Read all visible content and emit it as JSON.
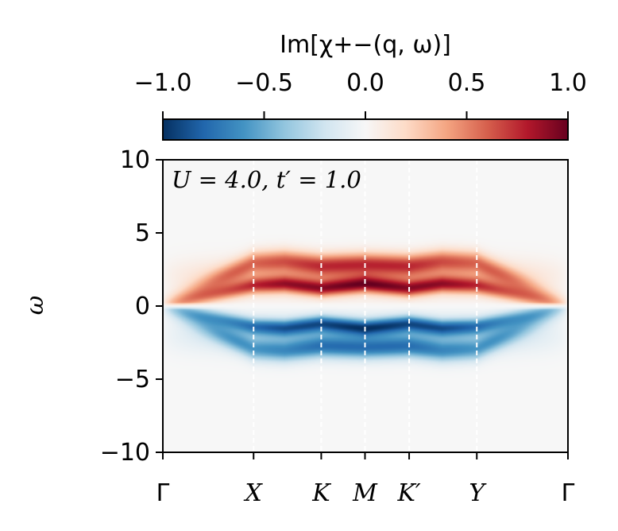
{
  "chart_data": {
    "type": "heatmap",
    "title": "",
    "annotation": "U = 4.0, t′ = 1.0",
    "ylabel": "ω",
    "xlabel": "",
    "ylim": [
      -10,
      10
    ],
    "yticks": [
      10,
      5,
      0,
      -5,
      -10
    ],
    "ytick_labels": [
      "10",
      "5",
      "0",
      "−5",
      "−10"
    ],
    "x_path": [
      {
        "label": "Γ",
        "pos": 0.0
      },
      {
        "label": "X",
        "pos": 0.224
      },
      {
        "label": "K",
        "pos": 0.391
      },
      {
        "label": "M",
        "pos": 0.499
      },
      {
        "label": "K′",
        "pos": 0.608
      },
      {
        "label": "Y",
        "pos": 0.775
      },
      {
        "label": "Γ",
        "pos": 1.0
      }
    ],
    "dashed_lines_at": [
      "X",
      "K",
      "M",
      "K′",
      "Y"
    ],
    "colorbar": {
      "label": "Im[χ+−(q, ω)]",
      "range": [
        -1.0,
        1.0
      ],
      "ticks": [
        -1.0,
        -0.5,
        0.0,
        0.5,
        1.0
      ],
      "tick_labels": [
        "−1.0",
        "−0.5",
        "0.0",
        "0.5",
        "1.0"
      ],
      "colormap": "RdBu_r",
      "placement": "top"
    },
    "bands": {
      "lower_omega": [
        0,
        1.4,
        1.5,
        1.2,
        1.5,
        1.2,
        1.5,
        1.4,
        0
      ],
      "upper_omega": [
        0,
        3.0,
        3.1,
        2.8,
        2.9,
        2.8,
        3.1,
        3.0,
        0
      ],
      "at_pos": [
        0.0,
        0.224,
        0.3,
        0.391,
        0.499,
        0.608,
        0.69,
        0.775,
        1.0
      ],
      "sign": "positive for ω>0, negative for ω<0 (antisymmetric)"
    }
  }
}
